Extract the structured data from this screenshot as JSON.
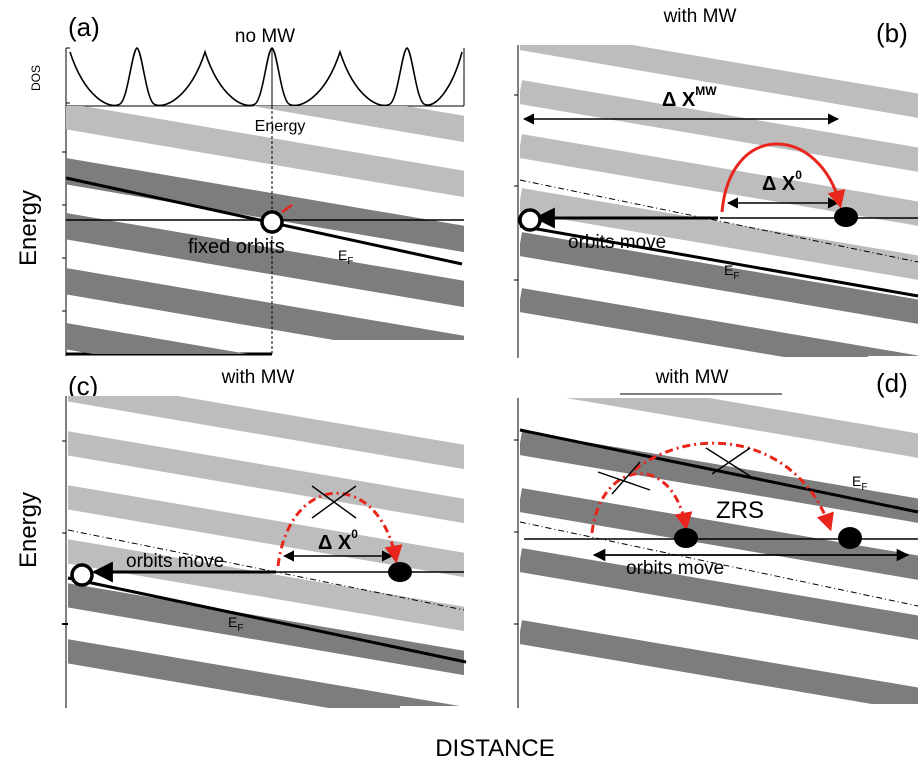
{
  "colors": {
    "light_band": "#bdbdbd",
    "dark_band": "#7d7d7d",
    "arrow_red": "#e8261c",
    "line": "#000000"
  },
  "axes": {
    "y_label": "Energy",
    "x_label": "DISTANCE",
    "dos_label": "DOS"
  },
  "panels": {
    "a": {
      "letter": "(a)",
      "title": "no MW",
      "energy_marker": "Energy",
      "orbit_label": "fixed orbits",
      "ef_label": "E",
      "ef_sub": "F"
    },
    "b": {
      "letter": "(b)",
      "title": "with MW",
      "dx_mw_label": "Δ X",
      "dx_mw_sup": "MW",
      "dx0_label": "Δ X",
      "dx0_sup": "0",
      "orbit_label": "orbits move",
      "ef_label": "E",
      "ef_sub": "F"
    },
    "c": {
      "letter": "(c)",
      "title": "with MW",
      "dx0_label": "Δ X",
      "dx0_sup": "0",
      "orbit_label": "orbits move",
      "ef_label": "E",
      "ef_sub": "F"
    },
    "d": {
      "letter": "(d)",
      "title": "with MW",
      "zrs_label": "ZRS",
      "orbit_label": "orbits move",
      "ef_label": "E",
      "ef_sub": "F"
    }
  }
}
